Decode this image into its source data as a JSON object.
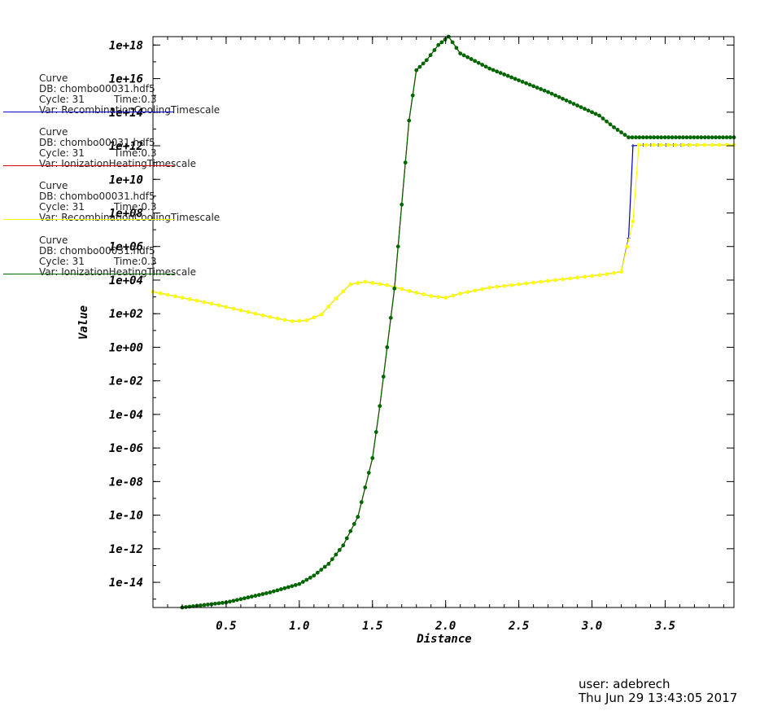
{
  "chart_data": {
    "type": "line",
    "xlabel": "Distance",
    "ylabel": "Value",
    "x_range": [
      0,
      3.97
    ],
    "y_range_log10": [
      -15.5,
      18.5
    ],
    "y_scale": "log",
    "x_ticks": [
      "0.5",
      "1.0",
      "1.5",
      "2.0",
      "2.5",
      "3.0",
      "3.5"
    ],
    "y_ticks": [
      "1e-14",
      "1e-12",
      "1e-10",
      "1e-08",
      "1e-06",
      "1e-04",
      "1e-02",
      "1e+00",
      "1e+02",
      "1e+04",
      "1e+06",
      "1e+08",
      "1e+10",
      "1e+12",
      "1e+14",
      "1e+16",
      "1e+18"
    ],
    "grid": false,
    "legend_placement": "left",
    "series": [
      {
        "name": "RecombinationCoolingTimescale",
        "color": "#0000cc",
        "marker": "plus",
        "log10_values": [
          [
            0,
            3.3
          ],
          [
            0.2,
            2.95
          ],
          [
            0.4,
            2.6
          ],
          [
            0.6,
            2.2
          ],
          [
            0.8,
            1.8
          ],
          [
            0.95,
            1.55
          ],
          [
            1.05,
            1.6
          ],
          [
            1.15,
            1.95
          ],
          [
            1.25,
            2.9
          ],
          [
            1.35,
            3.75
          ],
          [
            1.45,
            3.9
          ],
          [
            1.6,
            3.7
          ],
          [
            1.75,
            3.35
          ],
          [
            1.9,
            3.05
          ],
          [
            2.0,
            2.95
          ],
          [
            2.1,
            3.2
          ],
          [
            2.3,
            3.55
          ],
          [
            2.6,
            3.85
          ],
          [
            2.9,
            4.15
          ],
          [
            3.1,
            4.35
          ],
          [
            3.2,
            4.5
          ],
          [
            3.25,
            6.5
          ],
          [
            3.28,
            12.0
          ],
          [
            3.35,
            12.05
          ],
          [
            3.97,
            12.05
          ]
        ]
      },
      {
        "name": "IonizationHeatingTimescale",
        "color": "#cc0000",
        "marker": "plus",
        "log10_values": [
          [
            0.2,
            -15.5
          ],
          [
            0.5,
            -15.2
          ],
          [
            0.8,
            -14.6
          ],
          [
            1.0,
            -14.1
          ],
          [
            1.1,
            -13.6
          ],
          [
            1.2,
            -12.9
          ],
          [
            1.3,
            -11.8
          ],
          [
            1.4,
            -10.1
          ],
          [
            1.5,
            -6.6
          ],
          [
            1.55,
            -3.5
          ],
          [
            1.6,
            0.0
          ],
          [
            1.65,
            3.5
          ],
          [
            1.7,
            8.5
          ],
          [
            1.75,
            13.5
          ],
          [
            1.8,
            16.5
          ],
          [
            1.87,
            17.1
          ],
          [
            1.95,
            18.0
          ],
          [
            2.02,
            18.5
          ],
          [
            2.1,
            17.5
          ],
          [
            2.3,
            16.6
          ],
          [
            2.5,
            15.9
          ],
          [
            2.7,
            15.2
          ],
          [
            2.9,
            14.4
          ],
          [
            3.05,
            13.8
          ],
          [
            3.15,
            13.1
          ],
          [
            3.25,
            12.5
          ],
          [
            3.97,
            12.5
          ]
        ]
      },
      {
        "name": "RecombinationCoolingTimescale",
        "color": "#ffff00",
        "marker": "circle",
        "log10_values": [
          [
            0,
            3.3
          ],
          [
            0.2,
            2.95
          ],
          [
            0.4,
            2.6
          ],
          [
            0.6,
            2.2
          ],
          [
            0.8,
            1.8
          ],
          [
            0.95,
            1.55
          ],
          [
            1.05,
            1.6
          ],
          [
            1.15,
            1.95
          ],
          [
            1.25,
            2.9
          ],
          [
            1.35,
            3.75
          ],
          [
            1.45,
            3.9
          ],
          [
            1.6,
            3.7
          ],
          [
            1.75,
            3.35
          ],
          [
            1.9,
            3.05
          ],
          [
            2.0,
            2.95
          ],
          [
            2.1,
            3.2
          ],
          [
            2.3,
            3.55
          ],
          [
            2.6,
            3.85
          ],
          [
            2.9,
            4.15
          ],
          [
            3.1,
            4.35
          ],
          [
            3.2,
            4.5
          ],
          [
            3.28,
            7.5
          ],
          [
            3.32,
            12.05
          ],
          [
            3.97,
            12.05
          ]
        ]
      },
      {
        "name": "IonizationHeatingTimescale",
        "color": "#006600",
        "marker": "circle",
        "log10_values": [
          [
            0.2,
            -15.5
          ],
          [
            0.5,
            -15.2
          ],
          [
            0.8,
            -14.6
          ],
          [
            1.0,
            -14.1
          ],
          [
            1.1,
            -13.6
          ],
          [
            1.2,
            -12.9
          ],
          [
            1.3,
            -11.8
          ],
          [
            1.4,
            -10.1
          ],
          [
            1.5,
            -6.6
          ],
          [
            1.55,
            -3.5
          ],
          [
            1.6,
            0.0
          ],
          [
            1.65,
            3.5
          ],
          [
            1.7,
            8.5
          ],
          [
            1.75,
            13.5
          ],
          [
            1.8,
            16.5
          ],
          [
            1.87,
            17.1
          ],
          [
            1.95,
            18.0
          ],
          [
            2.02,
            18.5
          ],
          [
            2.1,
            17.5
          ],
          [
            2.3,
            16.6
          ],
          [
            2.5,
            15.9
          ],
          [
            2.7,
            15.2
          ],
          [
            2.9,
            14.4
          ],
          [
            3.05,
            13.8
          ],
          [
            3.15,
            13.1
          ],
          [
            3.25,
            12.5
          ],
          [
            3.97,
            12.5
          ]
        ]
      }
    ]
  },
  "legend": [
    {
      "title": "Curve",
      "db": "DB: chombo00031.hdf5",
      "cycle": "Cycle: 31",
      "time": "Time:0.3",
      "var": "Var: RecombinationCoolingTimescale",
      "color": "#0000cc"
    },
    {
      "title": "Curve",
      "db": "DB: chombo00031.hdf5",
      "cycle": "Cycle: 31",
      "time": "Time:0.3",
      "var": "Var: IonizationHeatingTimescale",
      "color": "#cc0000"
    },
    {
      "title": "Curve",
      "db": "DB: chombo00031.hdf5",
      "cycle": "Cycle: 31",
      "time": "Time:0.3",
      "var": "Var: RecombinationCoolingTimescale",
      "color": "#ffff00"
    },
    {
      "title": "Curve",
      "db": "DB: chombo00031.hdf5",
      "cycle": "Cycle: 31",
      "time": "Time:0.3",
      "var": "Var: IonizationHeatingTimescale",
      "color": "#006600"
    }
  ],
  "footer": {
    "user": "user: adebrech",
    "date": "Thu Jun 29 13:43:05 2017"
  }
}
